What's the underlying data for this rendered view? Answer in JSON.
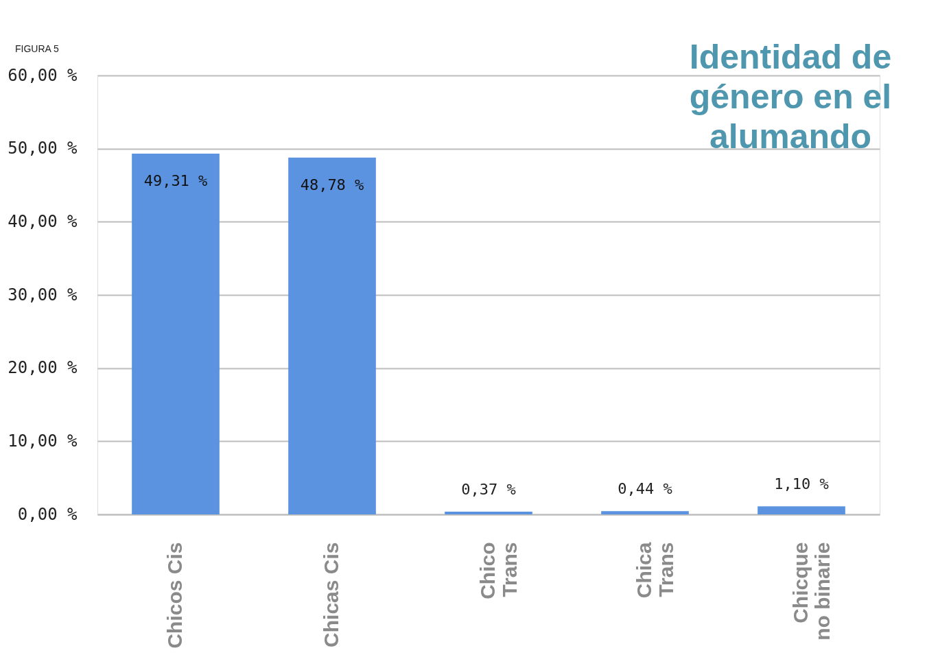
{
  "chart_data": {
    "type": "bar",
    "title": "Identidad de género en el alumando",
    "annotations": [
      "FIGURA 5"
    ],
    "categories": [
      "Chicos Cis",
      "Chicas Cis",
      "Chico Trans",
      "Chica Trans",
      "Chicque no binarie"
    ],
    "values": [
      49.31,
      48.78,
      0.37,
      0.44,
      1.1
    ],
    "value_labels": [
      "49,31 %",
      "48,78 %",
      "0,37 %",
      "0,44 %",
      "1,10 %"
    ],
    "color": "#5b93e0",
    "ylim": [
      0,
      60
    ],
    "yticks": [
      {
        "value": 0,
        "label": "0,00 %"
      },
      {
        "value": 10,
        "label": "10,00 %"
      },
      {
        "value": 20,
        "label": "20,00 %"
      },
      {
        "value": 30,
        "label": "30,00 %"
      },
      {
        "value": 40,
        "label": "40,00 %"
      },
      {
        "value": 50,
        "label": "50,00 %"
      },
      {
        "value": 60,
        "label": "60,00 %"
      }
    ],
    "grid": "y"
  }
}
